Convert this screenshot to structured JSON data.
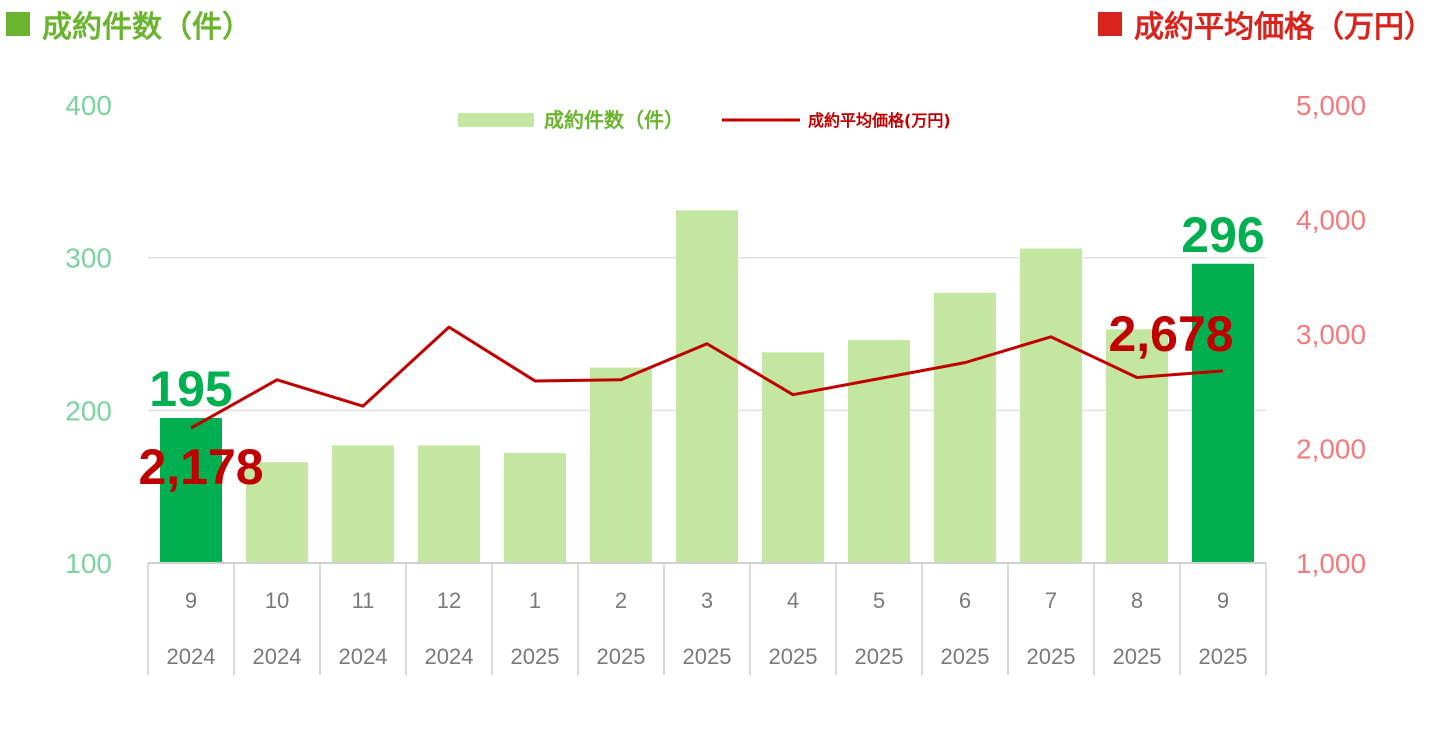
{
  "header": {
    "left_label": "成約件数（件）",
    "right_label": "成約平均価格（万円）",
    "left_color": "#6ab42f",
    "right_color": "#d9231d"
  },
  "chart_data": {
    "type": "bar",
    "categories": [
      "9",
      "10",
      "11",
      "12",
      "1",
      "2",
      "3",
      "4",
      "5",
      "6",
      "7",
      "8",
      "9"
    ],
    "years": [
      "2024",
      "2024",
      "2024",
      "2024",
      "2025",
      "2025",
      "2025",
      "2025",
      "2025",
      "2025",
      "2025",
      "2025",
      "2025"
    ],
    "series": [
      {
        "name": "成約件数（件）",
        "type": "bar",
        "axis": "left",
        "values": [
          195,
          166,
          177,
          177,
          172,
          228,
          331,
          238,
          246,
          277,
          306,
          253,
          296
        ],
        "color": "#c3e6a0",
        "highlight_color": "#00b050",
        "highlight_indices": [
          0,
          12
        ]
      },
      {
        "name": "成約平均価格(万円)",
        "type": "line",
        "axis": "right",
        "values": [
          2178,
          2600,
          2370,
          3060,
          2590,
          2600,
          2915,
          2470,
          2610,
          2750,
          2975,
          2620,
          2678
        ],
        "color": "#c00000"
      }
    ],
    "y_left": {
      "min": 100,
      "max": 400,
      "ticks": [
        "100",
        "200",
        "300",
        "400"
      ]
    },
    "y_right": {
      "min": 1000,
      "max": 5000,
      "ticks": [
        "1,000",
        "2,000",
        "3,000",
        "4,000",
        "5,000"
      ]
    },
    "data_labels": {
      "bar_first": "195",
      "bar_last": "296",
      "line_first": "2,178",
      "line_last": "2,678"
    },
    "legend_position": "top-center",
    "grid": true
  }
}
